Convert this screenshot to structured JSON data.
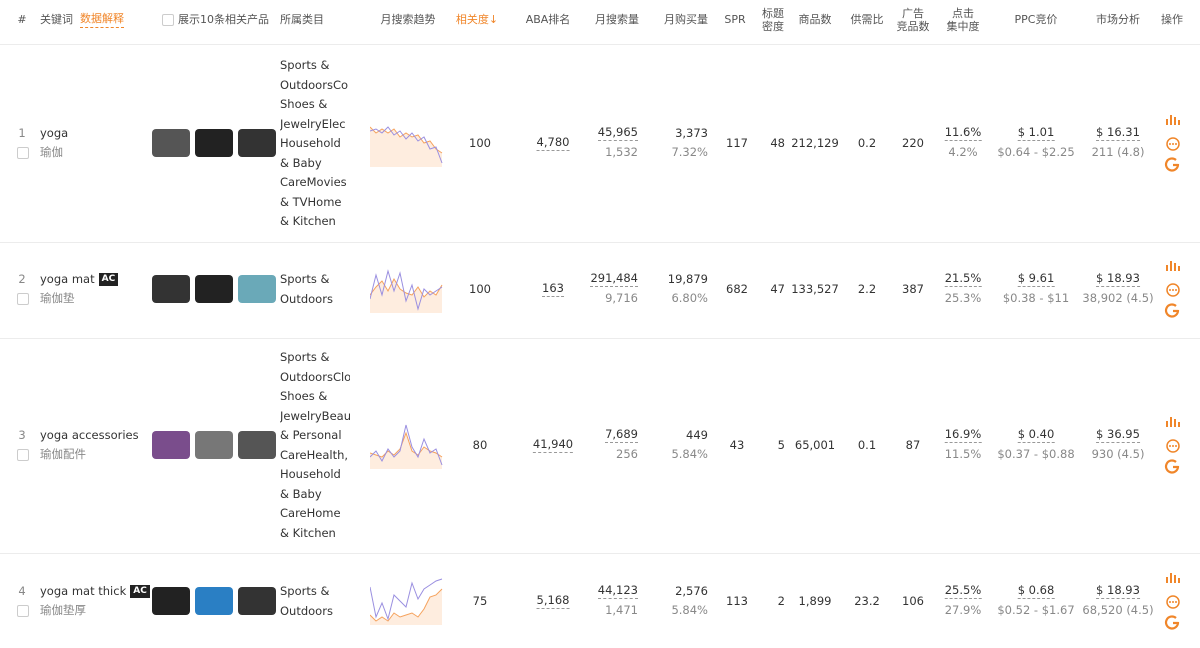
{
  "header": {
    "index": "#",
    "keyword": "关键词",
    "explain": "数据解释",
    "show_products": "展示10条相关产品",
    "category": "所属类目",
    "trend": "月搜索趋势",
    "relevance": "相关度↓",
    "aba": "ABA排名",
    "search": "月搜索量",
    "purchase": "月购买量",
    "spr": "SPR",
    "title_density": [
      "标题",
      "密度"
    ],
    "products": "商品数",
    "supply": "供需比",
    "ads": [
      "广告",
      "竞品数"
    ],
    "click": [
      "点击",
      "集中度"
    ],
    "ppc": "PPC竞价",
    "market": "市场分析",
    "ops": "操作"
  },
  "rows": [
    {
      "index": "1",
      "keyword": "yoga",
      "translation": "瑜伽",
      "categories": [
        "Sports &",
        "OutdoorsCo",
        "Shoes &",
        "JewelryElec",
        "Household",
        "& Baby",
        "CareMovies",
        "& TVHome",
        "& Kitchen"
      ],
      "relevance": "100",
      "aba": "4,780",
      "search": "45,965",
      "search_sub": "1,532",
      "purchase": "3,373",
      "purchase_sub": "7.32%",
      "spr": "117",
      "title_density": "48",
      "products": "212,129",
      "supply": "0.2",
      "ads": "220",
      "click": "11.6%",
      "click_sub": "4.2%",
      "ppc": "$ 1.01",
      "ppc_sub": "$0.64 - $2.25",
      "market": "$ 16.31",
      "market_sub": "211 (4.8)"
    },
    {
      "index": "2",
      "keyword": "yoga mat",
      "badge": "AC",
      "translation": "瑜伽垫",
      "categories": [
        "Sports &",
        "Outdoors"
      ],
      "relevance": "100",
      "aba": "163",
      "search": "291,484",
      "search_sub": "9,716",
      "purchase": "19,879",
      "purchase_sub": "6.80%",
      "spr": "682",
      "title_density": "47",
      "products": "133,527",
      "supply": "2.2",
      "ads": "387",
      "click": "21.5%",
      "click_sub": "25.3%",
      "ppc": "$ 9.61",
      "ppc_sub": "$0.38 - $11",
      "market": "$ 18.93",
      "market_sub": "38,902 (4.5)"
    },
    {
      "index": "3",
      "keyword": "yoga accessories",
      "translation": "瑜伽配件",
      "categories": [
        "Sports &",
        "OutdoorsClo",
        "Shoes &",
        "JewelryBeau",
        "& Personal",
        "CareHealth,",
        "Household",
        "& Baby",
        "CareHome",
        "& Kitchen"
      ],
      "relevance": "80",
      "aba": "41,940",
      "search": "7,689",
      "search_sub": "256",
      "purchase": "449",
      "purchase_sub": "5.84%",
      "spr": "43",
      "title_density": "5",
      "products": "65,001",
      "supply": "0.1",
      "ads": "87",
      "click": "16.9%",
      "click_sub": "11.5%",
      "ppc": "$ 0.40",
      "ppc_sub": "$0.37 - $0.88",
      "market": "$ 36.95",
      "market_sub": "930 (4.5)"
    },
    {
      "index": "4",
      "keyword": "yoga mat thick",
      "badge": "AC",
      "translation": "瑜伽垫厚",
      "categories": [
        "Sports &",
        "Outdoors"
      ],
      "relevance": "75",
      "aba": "5,168",
      "search": "44,123",
      "search_sub": "1,471",
      "purchase": "2,576",
      "purchase_sub": "5.84%",
      "spr": "113",
      "title_density": "2",
      "products": "1,899",
      "supply": "23.2",
      "ads": "106",
      "click": "25.5%",
      "click_sub": "27.9%",
      "ppc": "$ 0.68",
      "ppc_sub": "$0.52 - $1.67",
      "market": "$ 18.93",
      "market_sub": "68,520 (4.5)"
    }
  ]
}
